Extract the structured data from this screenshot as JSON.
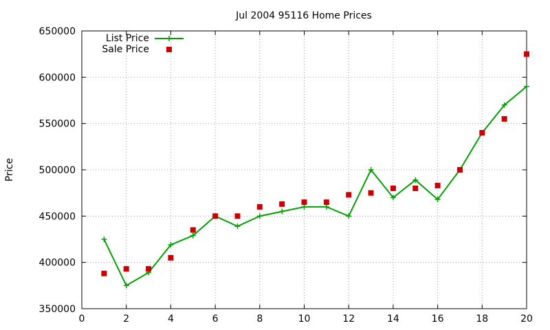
{
  "chart_data": {
    "type": "line",
    "title": "Jul 2004 95116 Home Prices",
    "xlabel": "",
    "ylabel": "Price",
    "xlim": [
      0,
      20
    ],
    "ylim": [
      350000,
      650000
    ],
    "x_ticks": [
      0,
      2,
      4,
      6,
      8,
      10,
      12,
      14,
      16,
      18,
      20
    ],
    "y_ticks": [
      350000,
      400000,
      450000,
      500000,
      550000,
      600000,
      650000
    ],
    "grid": true,
    "legend_position": "top-left",
    "series": [
      {
        "name": "List Price",
        "style": "line-with-plus-markers",
        "color": "#00a000",
        "x": [
          1,
          2,
          3,
          4,
          5,
          6,
          7,
          8,
          9,
          10,
          11,
          12,
          13,
          14,
          15,
          16,
          17,
          18,
          19,
          20
        ],
        "y": [
          425000,
          375000,
          389000,
          419000,
          429000,
          450000,
          439000,
          450000,
          455000,
          460000,
          460000,
          450000,
          500000,
          470000,
          489000,
          468000,
          500000,
          540000,
          570000,
          590000
        ]
      },
      {
        "name": "Sale Price",
        "style": "square-markers",
        "color": "#cc0000",
        "x": [
          1,
          2,
          3,
          4,
          5,
          6,
          7,
          8,
          9,
          10,
          11,
          12,
          13,
          14,
          15,
          16,
          17,
          18,
          19,
          20
        ],
        "y": [
          388000,
          393000,
          393000,
          405000,
          435000,
          450000,
          450000,
          460000,
          463000,
          465000,
          465000,
          473000,
          475000,
          480000,
          480000,
          483000,
          500000,
          540000,
          555000,
          625000
        ]
      }
    ]
  }
}
